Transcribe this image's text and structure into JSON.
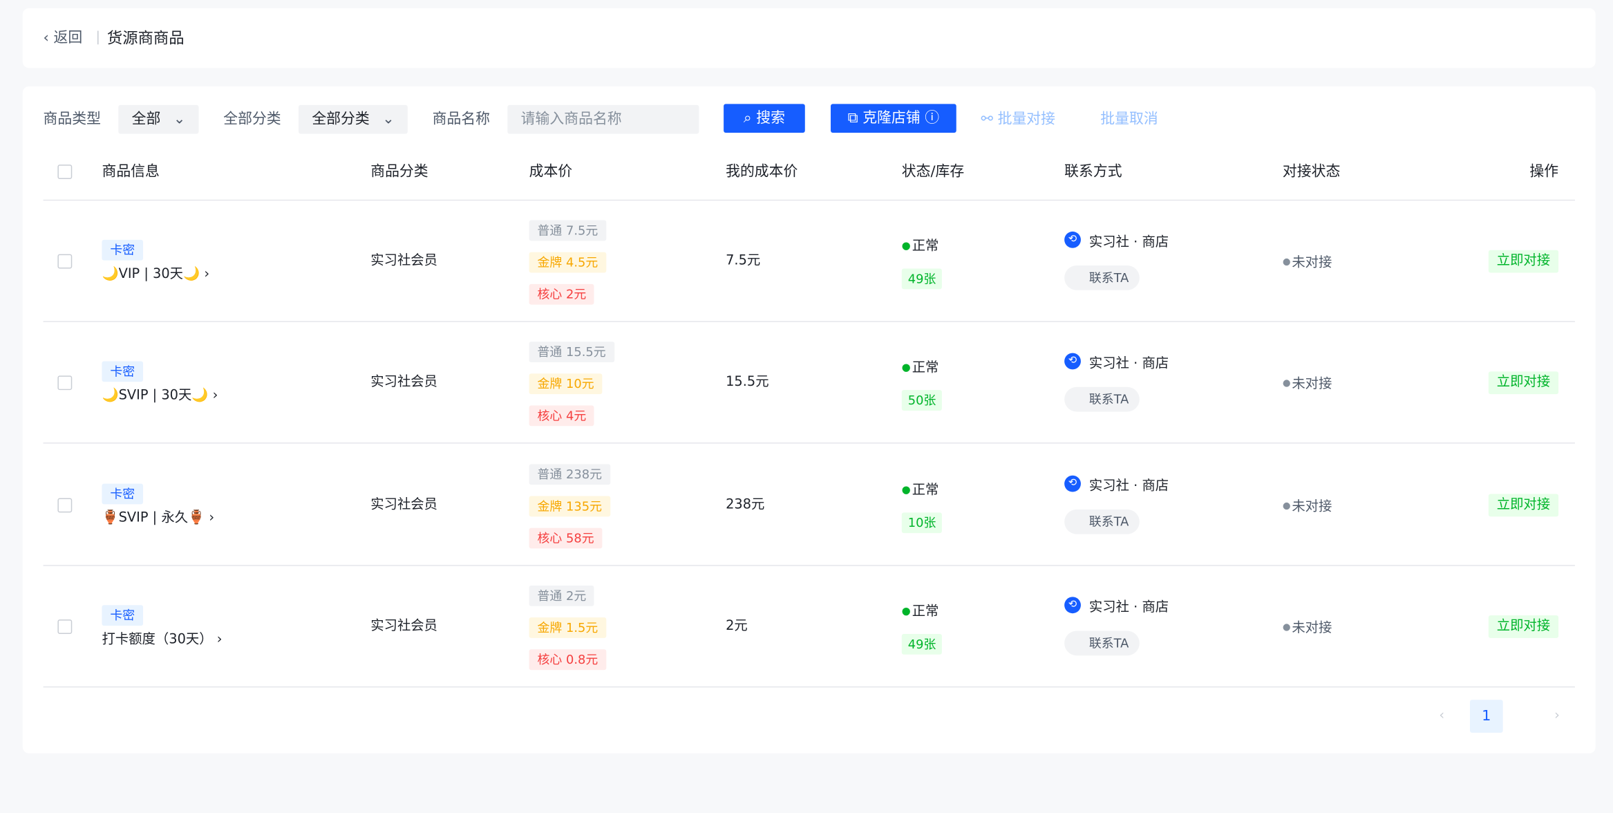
{
  "header": {
    "back": "返回",
    "title": "货源商商品"
  },
  "filters": {
    "type_label": "商品类型",
    "type_value": "全部",
    "category_label": "全部分类",
    "category_value": "全部分类",
    "name_label": "商品名称",
    "name_placeholder": "请输入商品名称",
    "search": "搜索",
    "clone": "克隆店铺",
    "batch_dock": "批量对接",
    "batch_cancel": "批量取消"
  },
  "table": {
    "columns": [
      "商品信息",
      "商品分类",
      "成本价",
      "我的成本价",
      "状态/库存",
      "联系方式",
      "对接状态",
      "操作"
    ],
    "rows": [
      {
        "tag": "卡密",
        "name": "🌙VIP | 30天🌙",
        "category": "实习社会员",
        "prices": [
          "普通 7.5元",
          "金牌 4.5元",
          "核心 2元"
        ],
        "my_cost": "7.5元",
        "status": "正常",
        "stock": "49张",
        "shop": "实习社 · 商店",
        "contact": "联系TA",
        "dock_status": "未对接",
        "action": "立即对接"
      },
      {
        "tag": "卡密",
        "name": "🌙SVIP | 30天🌙",
        "category": "实习社会员",
        "prices": [
          "普通 15.5元",
          "金牌 10元",
          "核心 4元"
        ],
        "my_cost": "15.5元",
        "status": "正常",
        "stock": "50张",
        "shop": "实习社 · 商店",
        "contact": "联系TA",
        "dock_status": "未对接",
        "action": "立即对接"
      },
      {
        "tag": "卡密",
        "name": "🏺SVIP | 永久🏺",
        "category": "实习社会员",
        "prices": [
          "普通 238元",
          "金牌 135元",
          "核心 58元"
        ],
        "my_cost": "238元",
        "status": "正常",
        "stock": "10张",
        "shop": "实习社 · 商店",
        "contact": "联系TA",
        "dock_status": "未对接",
        "action": "立即对接"
      },
      {
        "tag": "卡密",
        "name": "打卡额度（30天）",
        "category": "实习社会员",
        "prices": [
          "普通 2元",
          "金牌 1.5元",
          "核心 0.8元"
        ],
        "my_cost": "2元",
        "status": "正常",
        "stock": "49张",
        "shop": "实习社 · 商店",
        "contact": "联系TA",
        "dock_status": "未对接",
        "action": "立即对接"
      }
    ]
  },
  "pagination": {
    "page": "1"
  }
}
